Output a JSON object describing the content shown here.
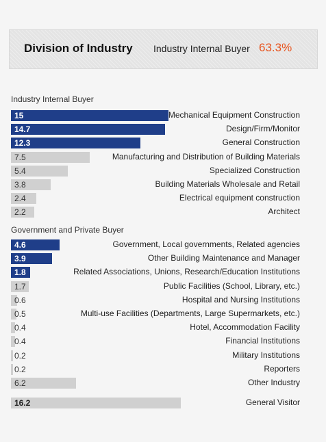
{
  "banner": {
    "title": "Division of Industry",
    "subtitle": "Industry Internal Buyer",
    "percent": "63.3%"
  },
  "colors": {
    "dark_bar": "#1f3e89",
    "light_bar": "#d0d0d0",
    "accent": "#e8541e"
  },
  "chart_data": {
    "type": "bar",
    "orientation": "horizontal",
    "title": "Division of Industry",
    "groups": [
      {
        "name": "Industry Internal Buyer",
        "items": [
          {
            "label": "Mechanical Equipment Construction",
            "value": 15,
            "value_text": "15",
            "highlight": true
          },
          {
            "label": "Design/Firm/Monitor",
            "value": 14.7,
            "value_text": "14.7",
            "highlight": true
          },
          {
            "label": "General Construction",
            "value": 12.3,
            "value_text": "12.3",
            "highlight": true
          },
          {
            "label": "Manufacturing and Distribution of Building Materials",
            "value": 7.5,
            "value_text": "7.5",
            "highlight": false
          },
          {
            "label": "Specialized Construction",
            "value": 5.4,
            "value_text": "5.4",
            "highlight": false
          },
          {
            "label": "Building Materials Wholesale and Retail",
            "value": 3.8,
            "value_text": "3.8",
            "highlight": false
          },
          {
            "label": "Electrical equipment construction",
            "value": 2.4,
            "value_text": "2.4",
            "highlight": false
          },
          {
            "label": "Architect",
            "value": 2.2,
            "value_text": "2.2",
            "highlight": false
          }
        ]
      },
      {
        "name": "Government and Private Buyer",
        "items": [
          {
            "label": "Government, Local governments, Related agencies",
            "value": 4.6,
            "value_text": "4.6",
            "highlight": true
          },
          {
            "label": "Other Building Maintenance and Manager",
            "value": 3.9,
            "value_text": "3.9",
            "highlight": true
          },
          {
            "label": "Related Associations, Unions, Research/Education Institutions",
            "value": 1.8,
            "value_text": "1.8",
            "highlight": true
          },
          {
            "label": "Public Facilities (School, Library, etc.)",
            "value": 1.7,
            "value_text": "1.7",
            "highlight": false
          },
          {
            "label": "Hospital and Nursing Institutions",
            "value": 0.6,
            "value_text": "0.6",
            "highlight": false
          },
          {
            "label": "Multi-use Facilities (Departments, Large Supermarkets, etc.)",
            "value": 0.5,
            "value_text": "0.5",
            "highlight": false
          },
          {
            "label": "Hotel, Accommodation Facility",
            "value": 0.4,
            "value_text": "0.4",
            "highlight": false
          },
          {
            "label": "Financial Institutions",
            "value": 0.4,
            "value_text": "0.4",
            "highlight": false
          },
          {
            "label": "Military Institutions",
            "value": 0.2,
            "value_text": "0.2",
            "highlight": false
          },
          {
            "label": "Reporters",
            "value": 0.2,
            "value_text": "0.2",
            "highlight": false
          },
          {
            "label": "Other Industry",
            "value": 6.2,
            "value_text": "6.2",
            "highlight": false
          }
        ]
      },
      {
        "name": "",
        "items": [
          {
            "label": "General Visitor",
            "value": 16.2,
            "value_text": "16.2",
            "highlight": false,
            "bold": true
          }
        ]
      }
    ]
  }
}
